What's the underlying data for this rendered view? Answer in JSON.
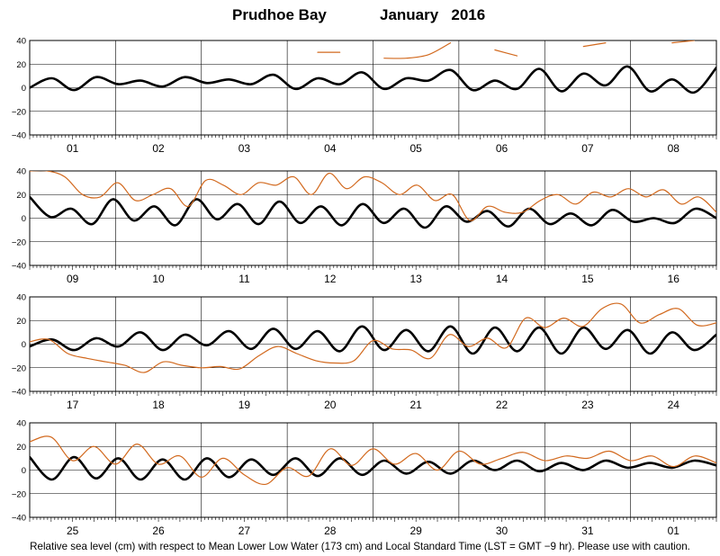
{
  "title": {
    "station": "Prudhoe Bay",
    "month_year": "January   2016"
  },
  "footnote": "Relative sea level (cm) with respect to Mean Lower Low Water (173 cm) and Local Standard Time (LST = GMT −9 hr). Please use with caution.",
  "colors": {
    "predicted": "#000000",
    "observed": "#d2691e",
    "grid": "#000000",
    "background": "#ffffff"
  },
  "chart_data": [
    {
      "type": "line",
      "panel": 1,
      "days": [
        "01",
        "02",
        "03",
        "04",
        "05",
        "06",
        "07",
        "08"
      ],
      "ylim": [
        -40,
        40
      ],
      "yticks": [
        "40",
        "20",
        "0",
        "−20",
        "−40"
      ],
      "series": [
        {
          "values": [
            0,
            8,
            -2,
            9,
            3,
            6,
            1,
            9,
            4,
            7,
            3,
            11,
            -1,
            8,
            3,
            13,
            -1,
            8,
            6,
            15,
            -2,
            6,
            -1,
            16,
            -3,
            12,
            2,
            18,
            -3,
            7,
            -4,
            17
          ]
        },
        {
          "values": [
            null,
            null,
            null,
            null,
            null,
            null,
            null,
            null,
            null,
            null,
            null,
            null,
            null,
            30,
            30,
            null,
            25,
            25,
            28,
            38,
            null,
            32,
            27,
            null,
            null,
            35,
            38,
            null,
            null,
            38,
            40,
            null
          ]
        }
      ]
    },
    {
      "type": "line",
      "panel": 2,
      "days": [
        "09",
        "10",
        "11",
        "12",
        "13",
        "14",
        "15",
        "16"
      ],
      "ylim": [
        -40,
        40
      ],
      "yticks": [
        "40",
        "20",
        "0",
        "−20",
        "−40"
      ],
      "series": [
        {
          "values": [
            18,
            1,
            8,
            -5,
            16,
            -2,
            10,
            -6,
            16,
            -1,
            12,
            -5,
            14,
            -4,
            10,
            -6,
            12,
            -4,
            8,
            -8,
            10,
            -3,
            6,
            -7,
            8,
            -5,
            4,
            -6,
            7,
            -3,
            0,
            -4,
            8,
            0
          ]
        },
        {
          "values": [
            40,
            40,
            35,
            20,
            18,
            30,
            15,
            20,
            25,
            10,
            32,
            28,
            20,
            30,
            28,
            35,
            20,
            38,
            25,
            35,
            30,
            20,
            28,
            15,
            20,
            -2,
            10,
            5,
            5,
            15,
            20,
            12,
            22,
            18,
            25,
            18,
            24,
            12,
            18,
            5
          ]
        }
      ]
    },
    {
      "type": "line",
      "panel": 3,
      "days": [
        "17",
        "18",
        "19",
        "20",
        "21",
        "22",
        "23",
        "24"
      ],
      "ylim": [
        -40,
        40
      ],
      "yticks": [
        "40",
        "20",
        "0",
        "−20",
        "−40"
      ],
      "series": [
        {
          "values": [
            -2,
            4,
            -5,
            5,
            -2,
            10,
            -5,
            8,
            -1,
            11,
            -4,
            13,
            -4,
            11,
            -6,
            15,
            -5,
            12,
            -6,
            15,
            -8,
            14,
            -6,
            14,
            -8,
            14,
            -4,
            12,
            -8,
            10,
            -5,
            8
          ]
        },
        {
          "values": [
            2,
            4,
            -8,
            -12,
            -15,
            -18,
            -24,
            -15,
            -18,
            -20,
            -19,
            -21,
            -10,
            -2,
            -8,
            -14,
            -16,
            -14,
            3,
            -4,
            -5,
            -12,
            8,
            -2,
            5,
            -3,
            22,
            14,
            22,
            15,
            30,
            34,
            18,
            25,
            30,
            16,
            18
          ]
        }
      ]
    },
    {
      "type": "line",
      "panel": 4,
      "days": [
        "25",
        "26",
        "27",
        "28",
        "29",
        "30",
        "31",
        "01"
      ],
      "ylim": [
        -40,
        40
      ],
      "yticks": [
        "40",
        "20",
        "0",
        "−20",
        "−40"
      ],
      "series": [
        {
          "values": [
            11,
            -8,
            11,
            -7,
            10,
            -8,
            9,
            -8,
            10,
            -6,
            9,
            -4,
            10,
            -5,
            10,
            -4,
            8,
            -3,
            7,
            -3,
            8,
            0,
            8,
            -1,
            6,
            0,
            8,
            2,
            6,
            2,
            8,
            4
          ]
        },
        {
          "values": [
            24,
            28,
            8,
            20,
            5,
            22,
            5,
            12,
            -6,
            10,
            -4,
            -12,
            2,
            -5,
            18,
            4,
            18,
            5,
            14,
            0,
            16,
            5,
            10,
            15,
            8,
            12,
            10,
            16,
            8,
            12,
            3,
            12,
            6
          ]
        }
      ]
    }
  ]
}
